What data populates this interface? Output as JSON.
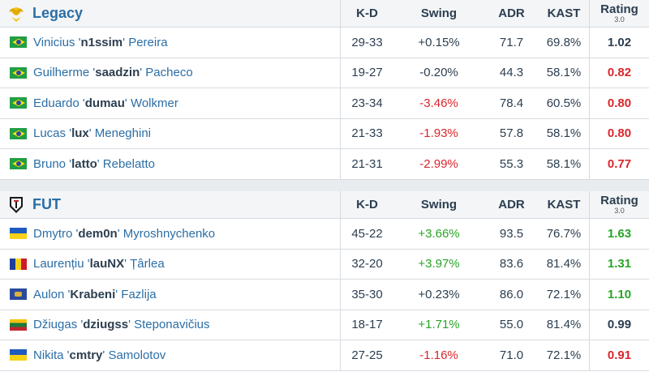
{
  "columns": {
    "kd": "K-D",
    "swing": "Swing",
    "adr": "ADR",
    "kast": "KAST",
    "rating": "Rating",
    "rating_version": "3.0"
  },
  "teams": [
    {
      "name": "Legacy",
      "logo_icon": "legacy-logo-icon",
      "players": [
        {
          "first": "Vinicius",
          "nick": "n1ssim",
          "last": "Pereira",
          "flag": "brazil-flag-icon",
          "kd": "29-33",
          "swing": "+0.15%",
          "adr": "71.7",
          "kast": "69.8%",
          "rating": "1.02"
        },
        {
          "first": "Guilherme",
          "nick": "saadzin",
          "last": "Pacheco",
          "flag": "brazil-flag-icon",
          "kd": "19-27",
          "swing": "-0.20%",
          "adr": "44.3",
          "kast": "58.1%",
          "rating": "0.82"
        },
        {
          "first": "Eduardo",
          "nick": "dumau",
          "last": "Wolkmer",
          "flag": "brazil-flag-icon",
          "kd": "23-34",
          "swing": "-3.46%",
          "adr": "78.4",
          "kast": "60.5%",
          "rating": "0.80"
        },
        {
          "first": "Lucas",
          "nick": "lux",
          "last": "Meneghini",
          "flag": "brazil-flag-icon",
          "kd": "21-33",
          "swing": "-1.93%",
          "adr": "57.8",
          "kast": "58.1%",
          "rating": "0.80"
        },
        {
          "first": "Bruno",
          "nick": "latto",
          "last": "Rebelatto",
          "flag": "brazil-flag-icon",
          "kd": "21-31",
          "swing": "-2.99%",
          "adr": "55.3",
          "kast": "58.1%",
          "rating": "0.77"
        }
      ]
    },
    {
      "name": "FUT",
      "logo_icon": "fut-logo-icon",
      "players": [
        {
          "first": "Dmytro",
          "nick": "dem0n",
          "last": "Myroshnychenko",
          "flag": "ukraine-flag-icon",
          "kd": "45-22",
          "swing": "+3.66%",
          "adr": "93.5",
          "kast": "76.7%",
          "rating": "1.63"
        },
        {
          "first": "Laurențiu",
          "nick": "lauNX",
          "last": "Țârlea",
          "flag": "romania-flag-icon",
          "kd": "32-20",
          "swing": "+3.97%",
          "adr": "83.6",
          "kast": "81.4%",
          "rating": "1.31"
        },
        {
          "first": "Aulon",
          "nick": "Krabeni",
          "last": "Fazlija",
          "flag": "kosovo-flag-icon",
          "kd": "35-30",
          "swing": "+0.23%",
          "adr": "86.0",
          "kast": "72.1%",
          "rating": "1.10"
        },
        {
          "first": "Džiugas",
          "nick": "dziugss",
          "last": "Steponavičius",
          "flag": "lithuania-flag-icon",
          "kd": "18-17",
          "swing": "+1.71%",
          "adr": "55.0",
          "kast": "81.4%",
          "rating": "0.99"
        },
        {
          "first": "Nikita",
          "nick": "cmtry",
          "last": "Samolotov",
          "flag": "ukraine-flag-icon",
          "kd": "27-25",
          "swing": "-1.16%",
          "adr": "71.0",
          "kast": "72.1%",
          "rating": "0.91"
        }
      ]
    }
  ],
  "colors": {
    "link": "#2b6ea6",
    "positive": "#28a428",
    "negative": "#d9262c",
    "header_bg": "#f3f5f7",
    "border": "#d6dbe0"
  }
}
